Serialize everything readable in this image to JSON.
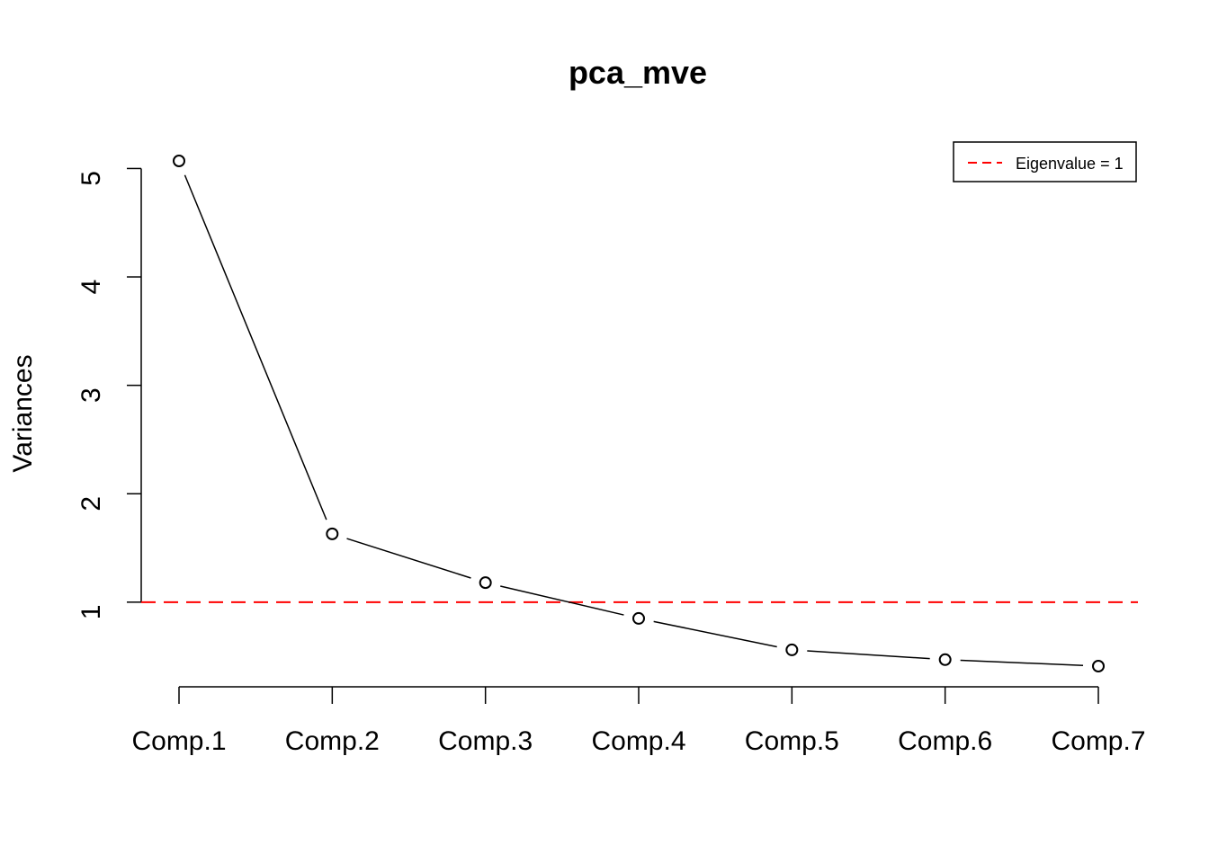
{
  "chart_data": {
    "type": "line",
    "title": "pca_mve",
    "xlabel": "",
    "ylabel": "Variances",
    "categories": [
      "Comp.1",
      "Comp.2",
      "Comp.3",
      "Comp.4",
      "Comp.5",
      "Comp.6",
      "Comp.7"
    ],
    "series": [
      {
        "name": "Variances",
        "values": [
          5.07,
          1.63,
          1.18,
          0.85,
          0.56,
          0.47,
          0.41
        ],
        "color": "#000000"
      }
    ],
    "y_ticks": [
      1,
      2,
      3,
      4,
      5
    ],
    "y_tick_labels": [
      "1",
      "2",
      "3",
      "4",
      "5"
    ],
    "ylim": [
      0.41,
      5.07
    ],
    "reference_line": {
      "value": 1,
      "label": "Eigenvalue = 1",
      "color": "#FF0000",
      "style": "dashed"
    },
    "legend": {
      "position": "top-right",
      "entries": [
        "Eigenvalue = 1"
      ]
    },
    "grid": false
  }
}
